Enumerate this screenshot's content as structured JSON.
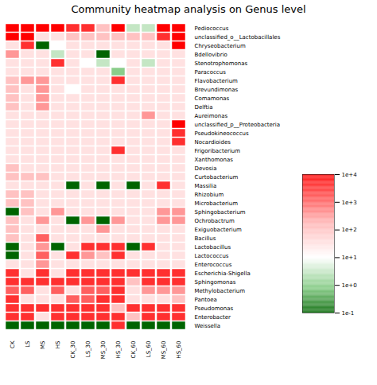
{
  "chart_data": {
    "type": "heatmap",
    "title": "Community heatmap analysis on Genus level",
    "x": [
      "CK",
      "LS",
      "MS",
      "HS",
      "CK_30",
      "LS_30",
      "MS_30",
      "HS_30",
      "CK_60",
      "LS_60",
      "MS_60",
      "HS_60"
    ],
    "y": [
      "Pediococcus",
      "unclassified_o__Lactobacillales",
      "Chryseobacterium",
      "Bdellovibrio",
      "Stenotrophomonas",
      "Paracoccus",
      "Flavobacterium",
      "Brevundimonas",
      "Comamonas",
      "Delftia",
      "Aureimonas",
      "unclassified_p__Proteobacteria",
      "Pseudokineococcus",
      "Nocardioides",
      "Frigoribacterium",
      "Xanthomonas",
      "Devosia",
      "Curtobacterium",
      "Massilia",
      "Rhizobium",
      "Microbacterium",
      "Sphingobacterium",
      "Ochrobactrum",
      "Exiguobacterium",
      "Bacillus",
      "Lactobacillus",
      "Lactococcus",
      "Enterococcus",
      "Escherichia-Shigella",
      "Sphingomonas",
      "Methylobacterium",
      "Pantoea",
      "Pseudomonas",
      "Enterobacter",
      "Weissella"
    ],
    "values": [
      [
        4.0,
        4.0,
        4.0,
        4.0,
        3.5,
        3.5,
        2.0,
        4.0,
        0.5,
        0.5,
        4.0,
        4.0
      ],
      [
        4.0,
        4.0,
        1.5,
        1.5,
        2.0,
        2.0,
        2.0,
        2.0,
        2.0,
        2.0,
        3.5,
        4.0
      ],
      [
        1.5,
        3.5,
        -1.0,
        1.0,
        1.5,
        1.5,
        1.5,
        1.5,
        1.5,
        1.5,
        1.5,
        4.0
      ],
      [
        2.5,
        1.5,
        1.5,
        0.5,
        1.5,
        1.5,
        -1.0,
        1.5,
        1.5,
        1.5,
        1.5,
        1.5
      ],
      [
        1.5,
        1.5,
        1.5,
        3.5,
        1.5,
        1.0,
        0.5,
        1.0,
        1.5,
        0.5,
        1.5,
        1.5
      ],
      [
        1.5,
        1.5,
        1.5,
        1.5,
        1.5,
        1.5,
        1.5,
        0.0,
        1.5,
        1.5,
        1.5,
        1.5
      ],
      [
        2.0,
        2.5,
        2.5,
        1.5,
        1.5,
        1.5,
        1.5,
        3.5,
        1.5,
        1.5,
        1.5,
        1.5
      ],
      [
        2.0,
        1.5,
        2.5,
        1.5,
        1.0,
        1.5,
        1.5,
        1.5,
        1.5,
        1.5,
        1.5,
        1.5
      ],
      [
        2.0,
        1.5,
        2.5,
        1.5,
        1.5,
        1.5,
        1.5,
        1.5,
        1.5,
        1.5,
        1.5,
        1.5
      ],
      [
        2.0,
        1.5,
        2.5,
        1.5,
        1.5,
        1.5,
        1.5,
        1.5,
        1.5,
        1.5,
        1.5,
        1.5
      ],
      [
        1.5,
        1.5,
        1.5,
        1.5,
        1.5,
        1.5,
        1.5,
        1.5,
        1.5,
        2.5,
        1.5,
        1.5
      ],
      [
        1.5,
        1.5,
        1.5,
        1.5,
        1.5,
        1.5,
        1.5,
        1.5,
        1.5,
        1.5,
        1.5,
        4.0
      ],
      [
        1.5,
        1.5,
        1.5,
        1.5,
        1.5,
        1.5,
        1.5,
        1.5,
        1.5,
        1.5,
        1.5,
        3.5
      ],
      [
        1.5,
        1.5,
        1.5,
        1.5,
        1.5,
        1.5,
        1.5,
        1.5,
        1.5,
        1.5,
        1.5,
        3.5
      ],
      [
        1.5,
        1.5,
        1.5,
        1.5,
        1.5,
        1.5,
        1.5,
        3.5,
        1.5,
        1.5,
        1.5,
        1.5
      ],
      [
        1.5,
        1.5,
        1.5,
        1.5,
        1.5,
        1.5,
        1.5,
        1.5,
        1.5,
        1.5,
        1.5,
        1.5
      ],
      [
        2.0,
        1.5,
        1.5,
        1.5,
        1.5,
        1.5,
        1.5,
        1.5,
        1.5,
        1.5,
        1.5,
        1.5
      ],
      [
        2.0,
        2.0,
        2.0,
        1.5,
        1.5,
        1.5,
        1.5,
        1.5,
        1.5,
        1.5,
        1.5,
        1.5
      ],
      [
        1.5,
        1.5,
        1.5,
        1.5,
        -1.0,
        1.5,
        -1.0,
        1.5,
        -1.0,
        1.5,
        3.5,
        1.5
      ],
      [
        2.0,
        2.0,
        1.5,
        1.5,
        1.5,
        1.5,
        1.5,
        1.5,
        1.5,
        1.5,
        1.5,
        1.5
      ],
      [
        2.0,
        2.0,
        1.5,
        1.5,
        1.5,
        1.5,
        1.5,
        1.5,
        1.5,
        1.5,
        1.5,
        1.5
      ],
      [
        -1.0,
        2.0,
        1.5,
        2.5,
        1.5,
        1.5,
        1.5,
        1.5,
        1.5,
        1.5,
        2.5,
        2.5
      ],
      [
        2.0,
        1.5,
        2.5,
        1.5,
        -1.0,
        2.5,
        -1.0,
        2.5,
        1.5,
        1.5,
        2.5,
        2.5
      ],
      [
        2.0,
        1.5,
        1.5,
        1.5,
        1.5,
        1.5,
        2.5,
        1.5,
        1.5,
        1.5,
        1.5,
        1.5
      ],
      [
        2.0,
        1.5,
        3.0,
        1.5,
        1.5,
        1.5,
        1.5,
        1.5,
        1.5,
        1.5,
        1.5,
        1.5
      ],
      [
        -1.0,
        1.5,
        2.5,
        -1.0,
        1.5,
        3.5,
        3.5,
        3.5,
        -1.0,
        3.5,
        1.5,
        1.5
      ],
      [
        -1.0,
        1.5,
        3.0,
        1.5,
        3.5,
        2.5,
        2.0,
        3.5,
        1.5,
        1.5,
        1.5,
        1.5
      ],
      [
        1.5,
        1.5,
        2.5,
        1.5,
        1.5,
        1.5,
        1.5,
        1.5,
        1.5,
        1.5,
        1.5,
        1.5
      ],
      [
        3.5,
        1.5,
        3.5,
        1.5,
        3.5,
        3.5,
        3.5,
        3.5,
        3.5,
        3.5,
        3.5,
        3.5
      ],
      [
        3.5,
        3.5,
        3.5,
        3.5,
        3.5,
        3.5,
        3.5,
        3.5,
        2.0,
        3.5,
        3.5,
        3.5
      ],
      [
        3.0,
        3.0,
        1.5,
        3.0,
        1.5,
        3.0,
        3.0,
        3.5,
        1.5,
        2.5,
        2.5,
        2.5
      ],
      [
        3.5,
        1.5,
        1.5,
        1.5,
        3.0,
        3.0,
        3.5,
        3.5,
        1.5,
        1.5,
        1.5,
        2.0
      ],
      [
        3.5,
        3.5,
        3.5,
        3.5,
        3.5,
        3.5,
        3.5,
        2.0,
        3.5,
        3.5,
        3.5,
        3.5
      ],
      [
        3.5,
        3.5,
        1.5,
        3.5,
        3.5,
        3.5,
        3.5,
        3.5,
        2.0,
        3.5,
        3.5,
        3.5
      ],
      [
        -1.0,
        -1.0,
        -1.0,
        -1.0,
        -1.0,
        -1.0,
        -1.0,
        3.5,
        -1.0,
        -1.0,
        -1.0,
        -1.0
      ]
    ],
    "color_stops": [
      [
        0.0,
        "#006400"
      ],
      [
        0.18,
        "#7EC87E"
      ],
      [
        0.4,
        "#FFFFFF"
      ],
      [
        0.65,
        "#FFB3B3"
      ],
      [
        0.8,
        "#FF6060"
      ],
      [
        1.0,
        "#FF0000"
      ]
    ],
    "color_range": [
      -1,
      4
    ],
    "color_ticks": [
      {
        "value": 4,
        "label": "1e+4"
      },
      {
        "value": 3,
        "label": "1e+3"
      },
      {
        "value": 2,
        "label": "1e+2"
      },
      {
        "value": 1,
        "label": "1e+1"
      },
      {
        "value": 0,
        "label": "1e+0"
      },
      {
        "value": -1,
        "label": "1e-1"
      }
    ]
  }
}
